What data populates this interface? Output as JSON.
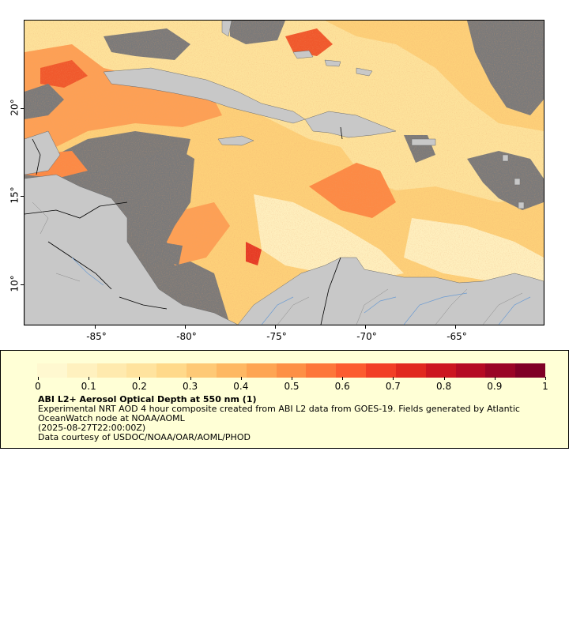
{
  "map": {
    "lon_labels": [
      "-85°",
      "-80°",
      "-75°",
      "-70°",
      "-65°"
    ],
    "lat_labels": [
      "20°",
      "15°",
      "10°"
    ],
    "colors": {
      "no_data": "#7a7a7a",
      "land": "#c8c8c8",
      "border": "#000000",
      "river": "#6b9bd2"
    }
  },
  "legend": {
    "tick_labels": [
      "0",
      "0.1",
      "0.2",
      "0.3",
      "0.4",
      "0.5",
      "0.6",
      "0.7",
      "0.8",
      "0.9",
      "1"
    ],
    "colorbar_colors": [
      "#fff8d0",
      "#fff1bf",
      "#ffeaae",
      "#ffe39e",
      "#ffd98a",
      "#fec976",
      "#feb863",
      "#fea553",
      "#fd9046",
      "#fd773a",
      "#fc5c2f",
      "#f23f26",
      "#e1291f",
      "#cc1620",
      "#b50b24",
      "#9a0526",
      "#800026"
    ],
    "title": "ABI L2+ Aerosol Optical Depth at 550 nm (1)",
    "description": "Experimental NRT AOD 4 hour composite created from ABI L2 data from GOES-19. Fields generated by Atlantic OceanWatch node at NOAA/AOML",
    "timestamp": "(2025-08-27T22:00:00Z)",
    "courtesy": "Data courtesy of USDOC/NOAA/OAR/AOML/PHOD"
  }
}
